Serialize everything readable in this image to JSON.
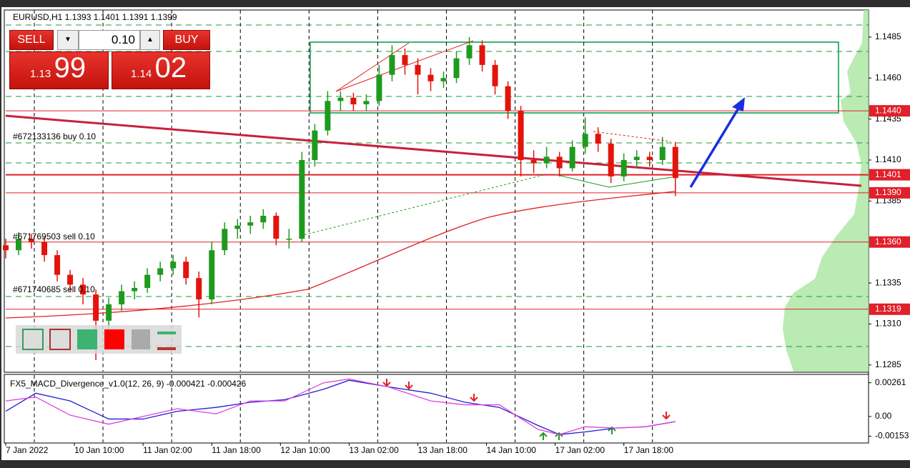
{
  "symbol_info": "EURUSD,H1  1.1393 1.1401 1.1391 1.1399",
  "trade_panel": {
    "sell": "SELL",
    "buy": "BUY",
    "volume": "0.10",
    "bid_prefix": "1.13",
    "bid_big": "99",
    "ask_prefix": "1.14",
    "ask_big": "02"
  },
  "chart_data": [
    {
      "type": "candlestick",
      "up_color": "#1e9a1e",
      "down_color": "#e3140c",
      "grid": true,
      "x": [
        0,
        3,
        6,
        9,
        12,
        15,
        18,
        21,
        24,
        27,
        30,
        33,
        36,
        39,
        42,
        45,
        48,
        51,
        54,
        57,
        60,
        63,
        66,
        69,
        72,
        75,
        78,
        81,
        84,
        87,
        90,
        93,
        96,
        99,
        102,
        105,
        108,
        111,
        114,
        117,
        120,
        123,
        126,
        129,
        132,
        135,
        138,
        141,
        144,
        147,
        150,
        153,
        156
      ],
      "open": [
        1.1358,
        1.1355,
        1.1362,
        1.136,
        1.1352,
        1.134,
        1.1334,
        1.1328,
        1.1312,
        1.1322,
        1.133,
        1.1332,
        1.134,
        1.1344,
        1.1348,
        1.1338,
        1.1325,
        1.1355,
        1.1368,
        1.137,
        1.1372,
        1.1376,
        1.1362,
        1.1362,
        1.141,
        1.1428,
        1.1446,
        1.1448,
        1.1444,
        1.1446,
        1.1462,
        1.1474,
        1.1468,
        1.1462,
        1.1458,
        1.146,
        1.1472,
        1.148,
        1.1468,
        1.1455,
        1.144,
        1.141,
        1.1408,
        1.1412,
        1.1405,
        1.1418,
        1.1426,
        1.142,
        1.14,
        1.141,
        1.1412,
        1.141,
        1.1418
      ],
      "high": [
        1.1362,
        1.1366,
        1.1365,
        1.1363,
        1.1355,
        1.1343,
        1.1338,
        1.1331,
        1.1326,
        1.1334,
        1.1336,
        1.1344,
        1.1348,
        1.1352,
        1.1351,
        1.1342,
        1.136,
        1.1372,
        1.1374,
        1.1376,
        1.138,
        1.1378,
        1.1368,
        1.1415,
        1.1432,
        1.1452,
        1.1452,
        1.1451,
        1.145,
        1.1468,
        1.148,
        1.1478,
        1.1472,
        1.1466,
        1.1464,
        1.1476,
        1.1485,
        1.1483,
        1.1471,
        1.1458,
        1.1443,
        1.1416,
        1.1418,
        1.1415,
        1.1422,
        1.1436,
        1.143,
        1.1423,
        1.1414,
        1.1416,
        1.1415,
        1.1424,
        1.1421
      ],
      "low": [
        1.135,
        1.1352,
        1.1356,
        1.1348,
        1.1336,
        1.133,
        1.1322,
        1.1288,
        1.1305,
        1.1318,
        1.1325,
        1.1329,
        1.1336,
        1.134,
        1.1334,
        1.1314,
        1.1322,
        1.1352,
        1.1362,
        1.1365,
        1.1368,
        1.1358,
        1.1356,
        1.136,
        1.1406,
        1.1425,
        1.144,
        1.144,
        1.144,
        1.1443,
        1.1458,
        1.1462,
        1.145,
        1.1452,
        1.1454,
        1.1457,
        1.1468,
        1.1464,
        1.145,
        1.1435,
        1.14,
        1.1402,
        1.1405,
        1.14,
        1.1403,
        1.1414,
        1.1415,
        1.1396,
        1.1397,
        1.1405,
        1.1406,
        1.1407,
        1.1388
      ],
      "close": [
        1.1355,
        1.1362,
        1.136,
        1.1352,
        1.134,
        1.1334,
        1.1328,
        1.1312,
        1.1322,
        1.133,
        1.1332,
        1.134,
        1.1344,
        1.1348,
        1.1338,
        1.1325,
        1.1355,
        1.1368,
        1.137,
        1.1372,
        1.1376,
        1.1362,
        1.1362,
        1.141,
        1.1428,
        1.1446,
        1.1448,
        1.1444,
        1.1446,
        1.1462,
        1.1474,
        1.1468,
        1.1462,
        1.1458,
        1.146,
        1.1472,
        1.148,
        1.1468,
        1.1455,
        1.144,
        1.141,
        1.1408,
        1.1412,
        1.1405,
        1.1418,
        1.1426,
        1.142,
        1.14,
        1.141,
        1.1412,
        1.141,
        1.1418,
        1.1399
      ],
      "xlim": [
        0,
        201
      ],
      "xticks": [
        {
          "value": 0,
          "label": "7 Jan 2022"
        },
        {
          "value": 16,
          "label": "10 Jan 10:00"
        },
        {
          "value": 32,
          "label": "11 Jan 02:00"
        },
        {
          "value": 48,
          "label": "11 Jan 18:00"
        },
        {
          "value": 64,
          "label": "12 Jan 10:00"
        },
        {
          "value": 80,
          "label": "13 Jan 02:00"
        },
        {
          "value": 96,
          "label": "13 Jan 18:00"
        },
        {
          "value": 112,
          "label": "14 Jan 10:00"
        },
        {
          "value": 128,
          "label": "17 Jan 02:00"
        },
        {
          "value": 144,
          "label": "17 Jan 18:00"
        }
      ],
      "ylim": [
        1.1281,
        1.15015
      ],
      "yticks": [
        1.1485,
        {
          "value": 1.146,
          "label": "1.1460"
        },
        1.1435,
        {
          "value": 1.141,
          "label": "1.1410"
        },
        1.1385,
        1.1335,
        {
          "value": 1.131,
          "label": "1.1310"
        },
        1.1285
      ],
      "price_labels": [
        {
          "value": 1.144,
          "label": "1.1440"
        },
        {
          "value": 1.1401,
          "label": "1.1401"
        },
        {
          "value": 1.139,
          "label": "1.1390"
        },
        {
          "value": 1.136,
          "label": "1.1360"
        },
        {
          "value": 1.1319,
          "label": "1.1319"
        }
      ],
      "orders": [
        "#672133136 buy 0.10",
        "#671769503 sell 0.10",
        "#671740685 sell 0.10"
      ]
    },
    {
      "type": "line",
      "title": "FX5_MACD_Divergence_v1.0(12, 26, 9) -0.000421 -0.000426",
      "x": [
        0,
        7,
        15,
        24,
        32,
        40,
        49,
        57,
        65,
        74,
        80,
        89,
        99,
        107,
        115,
        124,
        129,
        135,
        142,
        149,
        156
      ],
      "series": [
        {
          "color": "#1f1fd0",
          "values": [
            0.0004,
            0.0018,
            0.0012,
            -0.0002,
            -0.0002,
            0.0004,
            0.0007,
            0.0011,
            0.0013,
            0.0021,
            0.0028,
            0.0023,
            0.0018,
            0.0011,
            0.0007,
            -0.0007,
            -0.0014,
            -0.0012,
            -0.0009,
            -0.0008,
            -0.0004
          ]
        },
        {
          "color": "#e040e0",
          "values": [
            0.0012,
            0.0015,
            0.0001,
            -0.0006,
            0,
            0.0006,
            0.0002,
            0.0012,
            0.0012,
            0.0026,
            0.0029,
            0.0023,
            0.0012,
            0.0009,
            0.0009,
            -0.001,
            -0.0014,
            -0.0008,
            -0.0009,
            -0.0008,
            -0.0004
          ]
        }
      ],
      "ylim": [
        -0.002,
        0.0032
      ],
      "yticks": [
        0.00261,
        {
          "value": 0,
          "label": "0.00"
        },
        -0.00153
      ]
    }
  ]
}
